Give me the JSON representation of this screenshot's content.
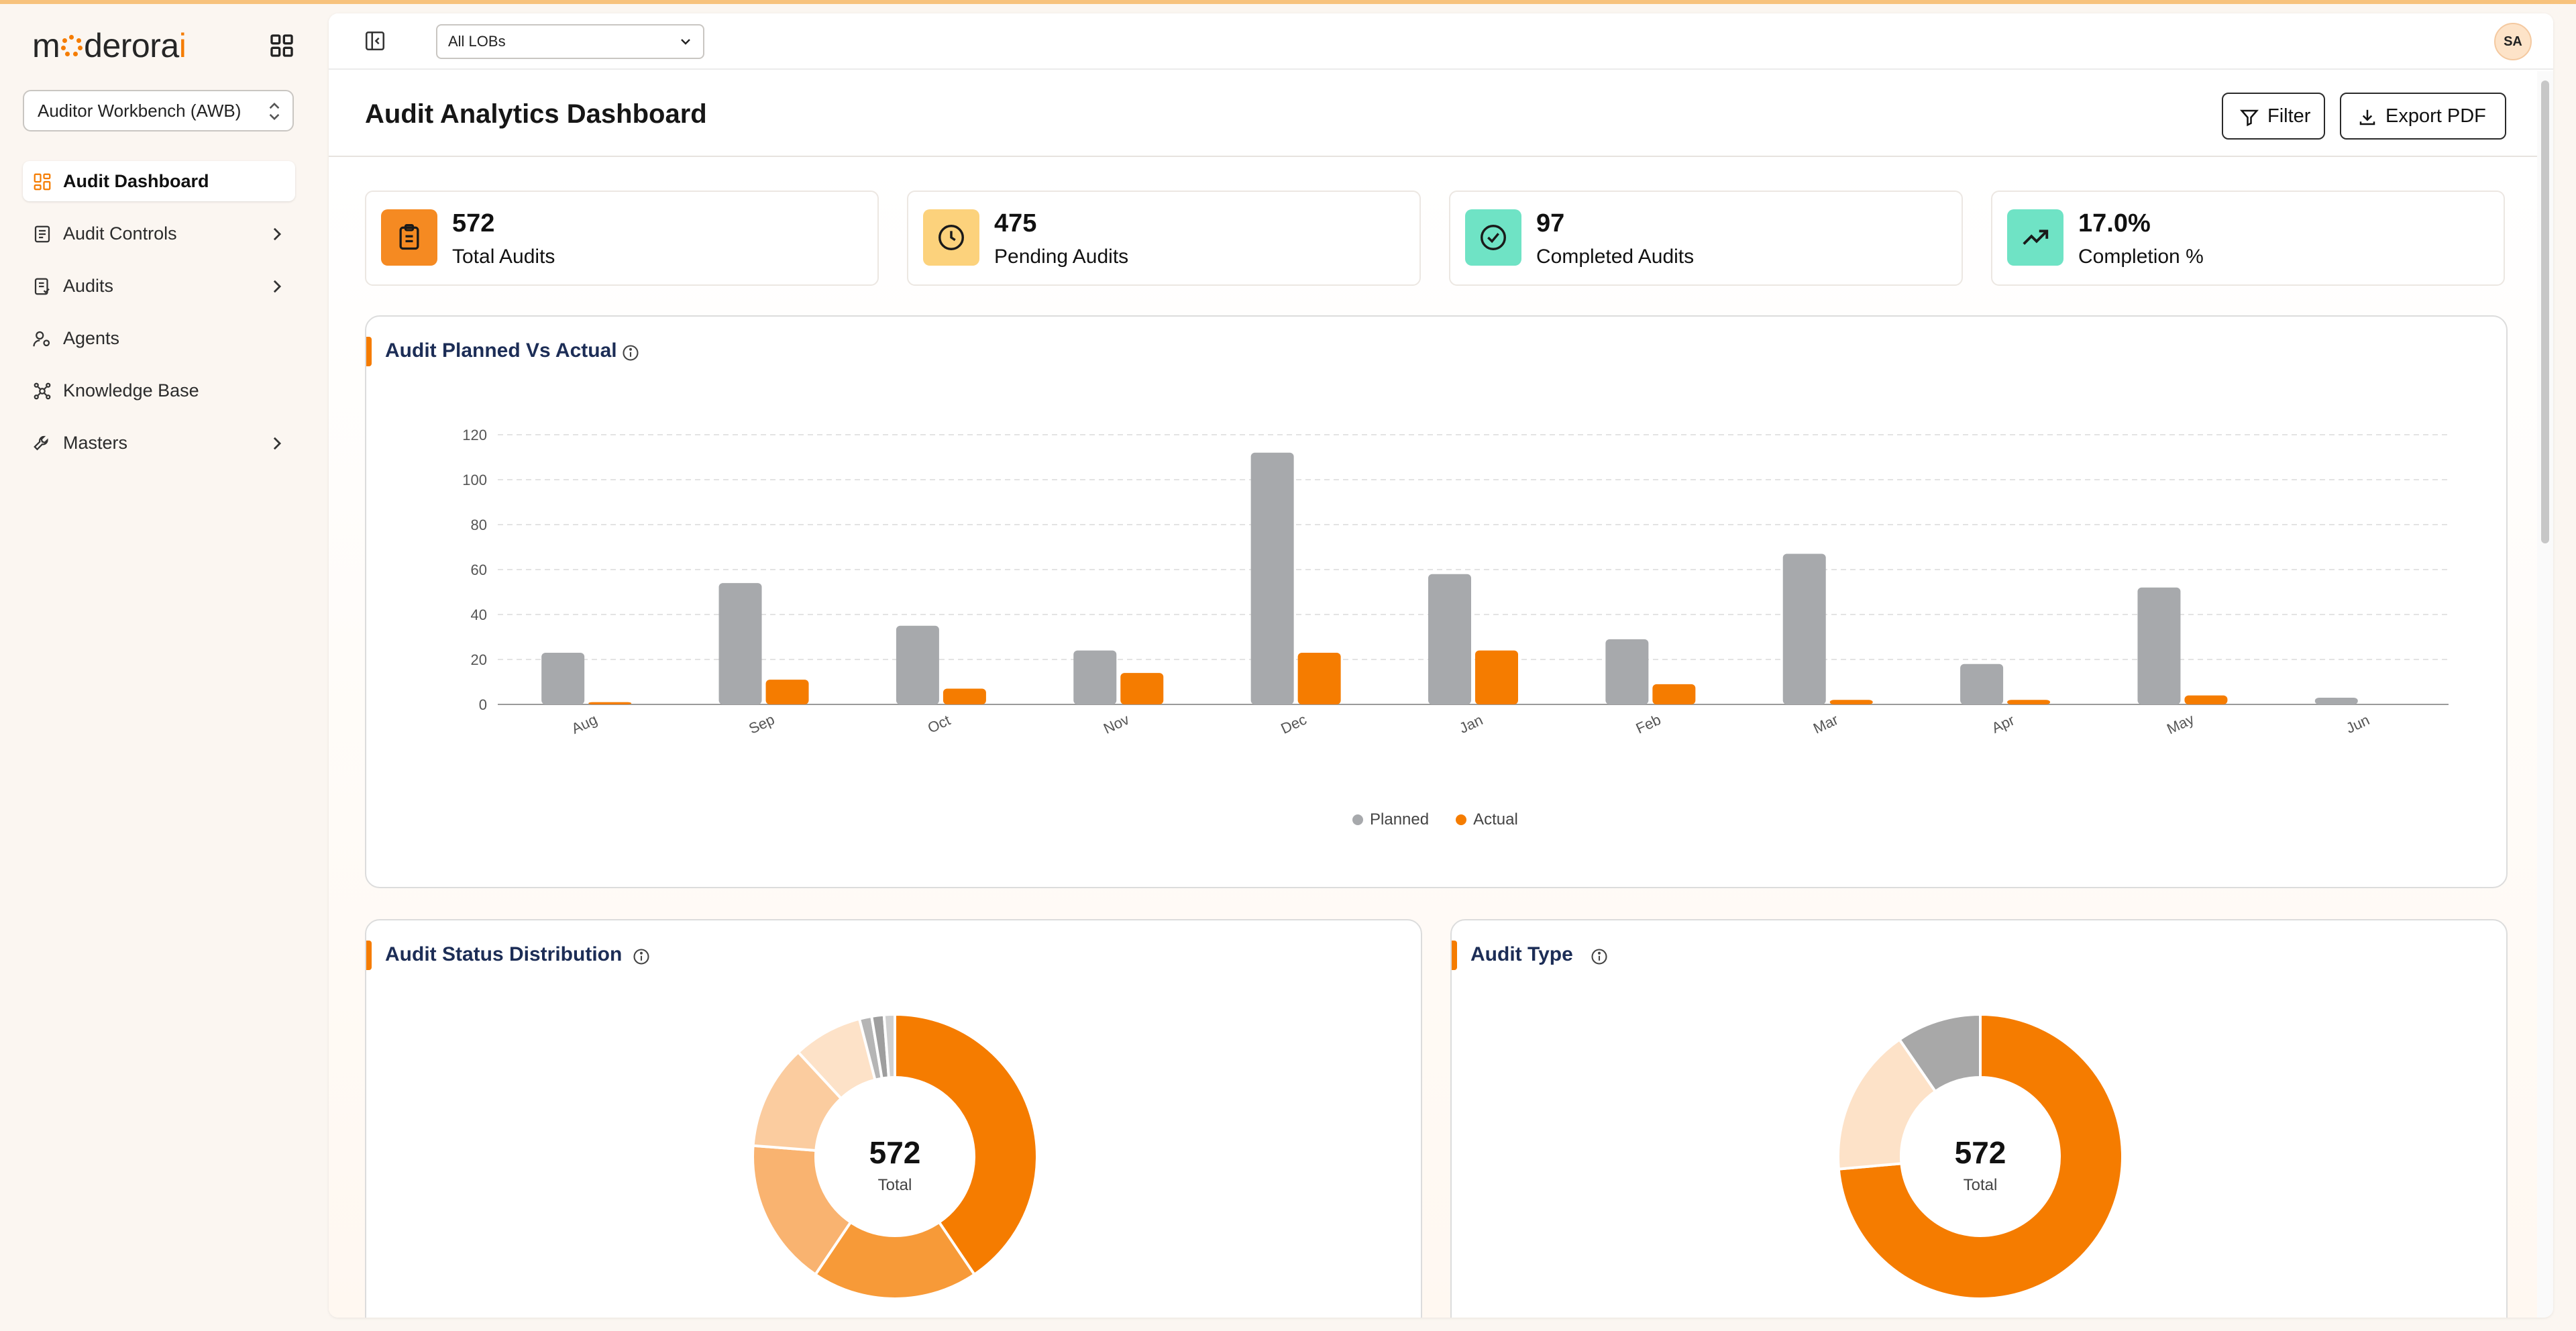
{
  "app": {
    "logo_left": "m",
    "logo_mid": "derora",
    "logo_right": "i",
    "workspace": "Auditor Workbench (AWB)"
  },
  "sidebar": {
    "items": [
      {
        "label": "Audit Dashboard",
        "icon": "dashboard-icon",
        "active": true,
        "has_arrow": false
      },
      {
        "label": "Audit Controls",
        "icon": "controls-icon",
        "active": false,
        "has_arrow": true
      },
      {
        "label": "Audits",
        "icon": "audits-icon",
        "active": false,
        "has_arrow": true
      },
      {
        "label": "Agents",
        "icon": "agents-icon",
        "active": false,
        "has_arrow": false
      },
      {
        "label": "Knowledge Base",
        "icon": "knowledge-icon",
        "active": false,
        "has_arrow": false
      },
      {
        "label": "Masters",
        "icon": "masters-icon",
        "active": false,
        "has_arrow": true
      }
    ]
  },
  "topbar": {
    "lob_select": "All LOBs",
    "avatar_initials": "SA"
  },
  "header": {
    "title": "Audit Analytics Dashboard",
    "filter_label": "Filter",
    "export_label": "Export PDF"
  },
  "stats": [
    {
      "value": "572",
      "label": "Total Audits",
      "color": "#f58a22",
      "icon": "clipboard-icon"
    },
    {
      "value": "475",
      "label": "Pending Audits",
      "color": "#fcd27c",
      "icon": "clock-icon"
    },
    {
      "value": "97",
      "label": "Completed Audits",
      "color": "#6fe3c5",
      "icon": "check-circle-icon"
    },
    {
      "value": "17.0%",
      "label": "Completion %",
      "color": "#6fe3c5",
      "icon": "trend-up-icon"
    }
  ],
  "colors": {
    "accent": "#f57c00",
    "planned": "#a7a9ac",
    "actual": "#f57c00"
  },
  "chart_data": [
    {
      "type": "bar",
      "title": "Audit Planned Vs Actual",
      "categories": [
        "Aug",
        "Sep",
        "Oct",
        "Nov",
        "Dec",
        "Jan",
        "Feb",
        "Mar",
        "Apr",
        "May",
        "Jun"
      ],
      "series": [
        {
          "name": "Planned",
          "color": "#a7a9ac",
          "values": [
            23,
            54,
            35,
            24,
            112,
            58,
            29,
            67,
            18,
            52,
            3
          ]
        },
        {
          "name": "Actual",
          "color": "#f57c00",
          "values": [
            1,
            11,
            7,
            14,
            23,
            24,
            9,
            2,
            2,
            4,
            0
          ]
        }
      ],
      "yticks": [
        0,
        20,
        40,
        60,
        80,
        100,
        120
      ],
      "ylim": [
        0,
        120
      ],
      "grid": true,
      "legend": "bottom-center"
    },
    {
      "type": "pie",
      "title": "Audit Status Distribution",
      "center_value": "572",
      "center_label": "Total",
      "values": [
        232,
        108,
        96,
        68,
        45,
        8,
        8,
        7
      ],
      "colors": [
        "#f57c00",
        "#f79a38",
        "#f9b370",
        "#fbcc9f",
        "#fde2c8",
        "#b5b5b5",
        "#9e9e9e",
        "#d0d0d0"
      ]
    },
    {
      "type": "pie",
      "title": "Audit Type",
      "center_value": "572",
      "center_label": "Total",
      "values": [
        421,
        96,
        55
      ],
      "colors": [
        "#f57c00",
        "#fde2c8",
        "#a8a8a8"
      ]
    }
  ]
}
